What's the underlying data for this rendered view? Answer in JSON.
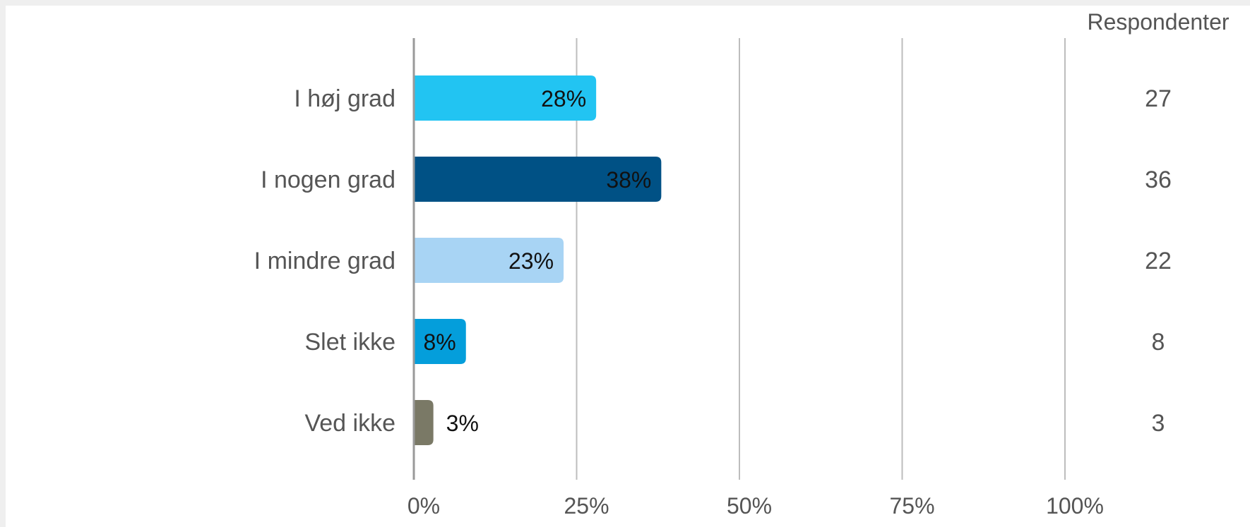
{
  "chart_data": {
    "type": "bar",
    "orientation": "horizontal",
    "categories": [
      "I høj grad",
      "I nogen grad",
      "I mindre grad",
      "Slet ikke",
      "Ved ikke"
    ],
    "values": [
      28,
      38,
      23,
      8,
      3
    ],
    "value_labels": [
      "28%",
      "38%",
      "23%",
      "8%",
      "3%"
    ],
    "colors": [
      "#22c4f2",
      "#005185",
      "#a8d4f4",
      "#049edb",
      "#7a7966"
    ],
    "respondents_header": "Respondenter",
    "respondents": [
      "27",
      "36",
      "22",
      "8",
      "3"
    ],
    "xlim": [
      0,
      100
    ],
    "x_ticks": [
      0,
      25,
      50,
      75,
      100
    ],
    "x_tick_labels": [
      "0%",
      "25%",
      "50%",
      "75%",
      "100%"
    ],
    "grid": true,
    "title": "",
    "xlabel": "",
    "ylabel": ""
  }
}
